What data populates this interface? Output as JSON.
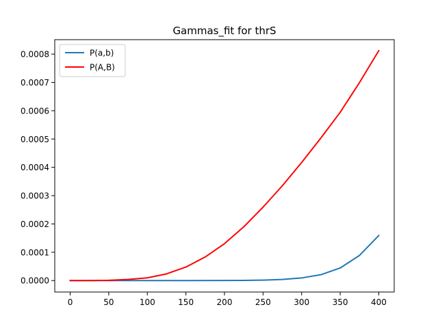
{
  "chart_data": {
    "type": "line",
    "title": "Gammas_fit for thrS",
    "xlabel": "",
    "ylabel": "",
    "xlim": [
      -20,
      420
    ],
    "ylim": [
      -4.05e-05,
      0.000851
    ],
    "xticks": [
      0,
      50,
      100,
      150,
      200,
      250,
      300,
      350,
      400
    ],
    "xtick_labels": [
      "0",
      "50",
      "100",
      "150",
      "200",
      "250",
      "300",
      "350",
      "400"
    ],
    "yticks": [
      0,
      0.0001,
      0.0002,
      0.0003,
      0.0004,
      0.0005,
      0.0006,
      0.0007,
      0.0008
    ],
    "ytick_labels": [
      "0.0000",
      "0.0001",
      "0.0002",
      "0.0003",
      "0.0004",
      "0.0005",
      "0.0006",
      "0.0007",
      "0.0008"
    ],
    "grid": false,
    "legend_position": "upper left",
    "series": [
      {
        "name": "P(a,b)",
        "color": "#1f77b4",
        "x": [
          0,
          50,
          100,
          150,
          200,
          225,
          250,
          275,
          300,
          325,
          350,
          375,
          400
        ],
        "y": [
          0,
          0,
          0,
          0,
          2e-07,
          6e-07,
          1.5e-06,
          3.8e-06,
          9.2e-06,
          2.07e-05,
          4.44e-05,
          8.88e-05,
          0.000159
        ]
      },
      {
        "name": "P(A,B)",
        "color": "#ff0000",
        "x": [
          0,
          25,
          50,
          75,
          100,
          125,
          150,
          175,
          200,
          225,
          250,
          275,
          300,
          325,
          350,
          375,
          400
        ],
        "y": [
          0,
          0,
          9e-07,
          3.8e-06,
          9.6e-06,
          2.36e-05,
          4.78e-05,
          8.32e-05,
          0.0001303,
          0.0001898,
          0.0002594,
          0.0003349,
          0.0004171,
          0.0005037,
          0.0005945,
          0.0006994,
          0.000812
        ]
      }
    ]
  }
}
